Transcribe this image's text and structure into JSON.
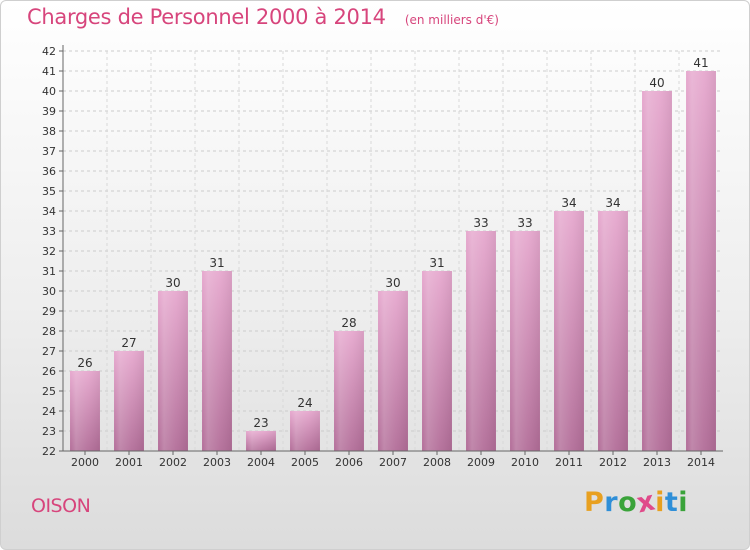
{
  "chart_data": {
    "type": "bar",
    "title": "Charges de Personnel 2000 à 2014",
    "subtitle": "(en milliers d'€)",
    "categories": [
      "2000",
      "2001",
      "2002",
      "2003",
      "2004",
      "2005",
      "2006",
      "2007",
      "2008",
      "2009",
      "2010",
      "2011",
      "2012",
      "2013",
      "2014"
    ],
    "values": [
      26,
      27,
      30,
      31,
      23,
      24,
      28,
      30,
      31,
      33,
      33,
      34,
      34,
      40,
      41
    ],
    "ylim": [
      22,
      42
    ],
    "yticks": [
      22,
      23,
      24,
      25,
      26,
      27,
      28,
      29,
      30,
      31,
      32,
      33,
      34,
      35,
      36,
      37,
      38,
      39,
      40,
      41,
      42
    ],
    "grid": "horizontal-dashed",
    "bar_color_top": "#e6a8ce",
    "bar_color_bottom": "#b26d98"
  },
  "footer": {
    "commune": "OISON"
  },
  "logo": {
    "letters": [
      "P",
      "r",
      "o",
      "x",
      "i",
      "t",
      "i"
    ],
    "colors": [
      "#e8a020",
      "#2f8fd8",
      "#3aa33a",
      "#e04a8a",
      "#e8a020",
      "#2f8fd8",
      "#3aa33a"
    ]
  }
}
